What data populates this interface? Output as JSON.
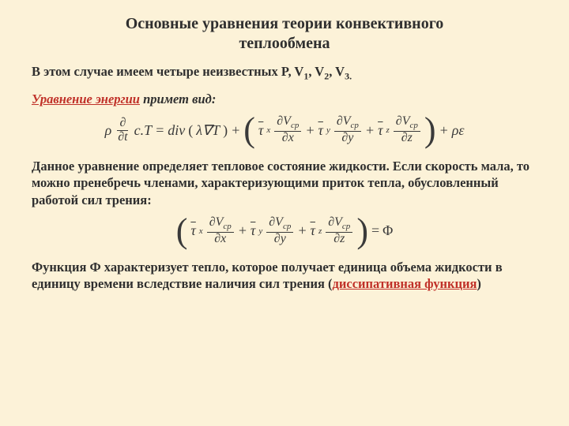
{
  "colors": {
    "background": "#fcf2d8",
    "text": "#2f2f2f",
    "accent": "#c03028",
    "equation": "#3a3a3a"
  },
  "typography": {
    "title_fontsize": 20,
    "body_fontsize": 16.5,
    "eq_fontsize": 18,
    "font_family_body": "Georgia, Times New Roman, serif",
    "font_family_eq": "Times New Roman, serif"
  },
  "title": {
    "line1": "Основные уравнения теории конвективного",
    "line2": "теплообмена"
  },
  "p1": {
    "prefix": "В этом случае имеем четыре неизвестных P, V",
    "s1": "1",
    "mid1": ", V",
    "s2": "2",
    "mid2": ", V",
    "s3": "3.",
    "suffix": ""
  },
  "p2": {
    "label": "Уравнение энергии",
    "rest": " примет вид:"
  },
  "eq1": {
    "rho": "ρ",
    "partial": "∂",
    "t": "t",
    "cT": "c.T",
    "eq": "=",
    "div": "div",
    "lambda": "λ∇T",
    "plus": "+",
    "tau": "τ",
    "x": "x",
    "y": "y",
    "z": "z",
    "Vcp": "V",
    "cp": "cp",
    "rhoeps": "ρε"
  },
  "p3": "Данное уравнение определяет тепловое состояние жидкости. Если скорость мала, то можно пренебречь членами, характеризующими приток тепла, обусловленный работой сил трения:",
  "eq2": {
    "Phi": "Φ"
  },
  "p4": {
    "text1": "Функция Ф характеризует тепло, которое получает единица объема жидкости в единицу времени вследствие наличия сил трения (",
    "term": "диссипативная функция",
    "text2": ")"
  }
}
